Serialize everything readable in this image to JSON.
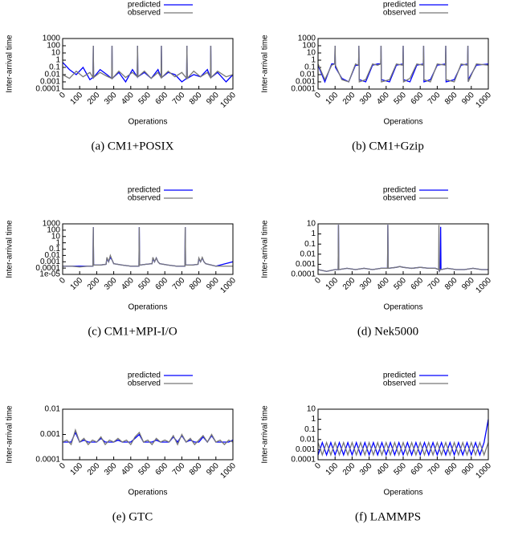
{
  "chart_data": [
    {
      "type": "line",
      "caption": "(a) CM1+POSIX",
      "xlabel": "Operations",
      "ylabel": "Inter-arrival time",
      "log_y": true,
      "legend": "top",
      "xlim": [
        0,
        1000
      ],
      "xticks": [
        0,
        100,
        200,
        300,
        400,
        500,
        600,
        700,
        800,
        900,
        1000
      ],
      "ylim": [
        0.0001,
        1000
      ],
      "yticks": [
        0.0001,
        0.001,
        0.01,
        0.1,
        1,
        10,
        100,
        1000
      ],
      "x": [
        0,
        40,
        80,
        120,
        160,
        178,
        180,
        182,
        220,
        260,
        288,
        290,
        292,
        330,
        370,
        410,
        438,
        440,
        442,
        480,
        520,
        560,
        578,
        580,
        582,
        620,
        660,
        700,
        728,
        730,
        732,
        770,
        810,
        850,
        868,
        870,
        872,
        910,
        960,
        1000
      ],
      "series": [
        {
          "name": "predicted",
          "color": "#0000ff",
          "values": [
            0.5,
            0.05,
            0.01,
            0.1,
            0.002,
            0.004,
            100,
            0.004,
            0.05,
            0.01,
            0.003,
            100,
            0.003,
            0.02,
            0.001,
            0.05,
            0.005,
            100,
            0.005,
            0.02,
            0.003,
            0.05,
            0.004,
            100,
            0.004,
            0.02,
            0.01,
            0.001,
            0.003,
            100,
            0.003,
            0.01,
            0.005,
            0.05,
            0.004,
            100,
            0.004,
            0.02,
            0.001,
            0.01
          ]
        },
        {
          "name": "observed",
          "color": "#777777",
          "values": [
            0.01,
            0.003,
            0.03,
            0.005,
            0.02,
            0.004,
            100,
            0.004,
            0.02,
            0.006,
            0.003,
            100,
            0.003,
            0.03,
            0.004,
            0.02,
            0.005,
            100,
            0.005,
            0.03,
            0.003,
            0.02,
            0.004,
            100,
            0.004,
            0.03,
            0.005,
            0.02,
            0.003,
            100,
            0.003,
            0.03,
            0.005,
            0.02,
            0.004,
            100,
            0.004,
            0.03,
            0.005,
            0.01
          ]
        }
      ]
    },
    {
      "type": "line",
      "caption": "(b) CM1+Gzip",
      "xlabel": "Operations",
      "ylabel": "Inter-arrival time",
      "log_y": true,
      "legend": "top",
      "xlim": [
        0,
        1000
      ],
      "xticks": [
        0,
        100,
        200,
        300,
        400,
        500,
        600,
        700,
        800,
        900,
        1000
      ],
      "ylim": [
        0.0001,
        1000
      ],
      "yticks": [
        0.0001,
        0.001,
        0.01,
        0.1,
        1,
        10,
        100,
        1000
      ],
      "x": [
        0,
        40,
        80,
        98,
        100,
        102,
        140,
        180,
        220,
        238,
        240,
        242,
        280,
        320,
        350,
        368,
        370,
        372,
        420,
        460,
        498,
        500,
        502,
        540,
        580,
        618,
        620,
        622,
        660,
        700,
        748,
        750,
        752,
        800,
        840,
        878,
        880,
        882,
        930,
        1000
      ],
      "series": [
        {
          "name": "predicted",
          "color": "#0000ff",
          "values": [
            0.2,
            0.001,
            0.3,
            0.3,
            100,
            0.1,
            0.003,
            0.001,
            0.2,
            0.2,
            100,
            0.002,
            0.001,
            0.2,
            0.3,
            0.3,
            100,
            0.002,
            0.001,
            0.2,
            0.3,
            100,
            0.002,
            0.001,
            0.2,
            0.3,
            100,
            0.001,
            0.002,
            0.2,
            0.3,
            100,
            0.001,
            0.002,
            0.2,
            0.3,
            100,
            0.002,
            0.2,
            0.3
          ]
        },
        {
          "name": "observed",
          "color": "#777777",
          "values": [
            0.3,
            0.002,
            0.2,
            0.3,
            100,
            0.2,
            0.002,
            0.001,
            0.3,
            0.2,
            100,
            0.001,
            0.002,
            0.3,
            0.2,
            0.3,
            100,
            0.001,
            0.002,
            0.3,
            0.2,
            100,
            0.001,
            0.003,
            0.3,
            0.2,
            100,
            0.002,
            0.001,
            0.3,
            0.2,
            100,
            0.002,
            0.001,
            0.3,
            0.2,
            100,
            0.001,
            0.3,
            0.2
          ]
        }
      ]
    },
    {
      "type": "line",
      "caption": "(c) CM1+MPI-I/O",
      "xlabel": "Operations",
      "ylabel": "Inter-arrival time",
      "log_y": true,
      "legend": "top",
      "xlim": [
        0,
        1000
      ],
      "xticks": [
        0,
        100,
        200,
        300,
        400,
        500,
        600,
        700,
        800,
        900,
        1000
      ],
      "ylim": [
        1e-05,
        1000
      ],
      "yticks": [
        {
          "value": 1e-05,
          "label": "1e-05"
        },
        0.0001,
        0.001,
        0.01,
        0.1,
        1,
        10,
        100,
        1000
      ],
      "x": [
        0,
        50,
        100,
        150,
        178,
        180,
        182,
        220,
        255,
        260,
        270,
        280,
        290,
        300,
        350,
        400,
        448,
        450,
        452,
        490,
        525,
        530,
        540,
        550,
        560,
        570,
        620,
        670,
        718,
        720,
        722,
        760,
        795,
        800,
        810,
        820,
        830,
        840,
        900,
        1000
      ],
      "series": [
        {
          "name": "predicted",
          "color": "#0000ff",
          "values": [
            0.0002,
            0.0002,
            0.0002,
            0.0002,
            0.0002,
            300,
            0.0003,
            0.0003,
            0.0004,
            0.003,
            0.001,
            0.005,
            0.002,
            0.0005,
            0.0003,
            0.0002,
            0.0002,
            300,
            0.0003,
            0.0004,
            0.0005,
            0.003,
            0.001,
            0.004,
            0.001,
            0.0005,
            0.0003,
            0.0002,
            0.0002,
            300,
            0.0003,
            0.0003,
            0.0004,
            0.003,
            0.001,
            0.004,
            0.001,
            0.0005,
            0.0002,
            0.001
          ]
        },
        {
          "name": "observed",
          "color": "#777777",
          "values": [
            0.0002,
            0.0002,
            0.00015,
            0.0002,
            0.0002,
            300,
            0.0003,
            0.0003,
            0.0004,
            0.005,
            0.001,
            0.01,
            0.002,
            0.0005,
            0.0003,
            0.0002,
            0.0002,
            300,
            0.0003,
            0.0004,
            0.0005,
            0.005,
            0.001,
            0.004,
            0.001,
            0.0005,
            0.0003,
            0.0002,
            0.0002,
            300,
            0.0003,
            0.0003,
            0.0004,
            0.004,
            0.001,
            0.005,
            0.001,
            0.0005,
            0.0002,
            0.0002
          ]
        }
      ]
    },
    {
      "type": "line",
      "caption": "(d) Nek5000",
      "xlabel": "Operations",
      "ylabel": "Inter-arrival time",
      "log_y": true,
      "legend": "top",
      "xlim": [
        0,
        1000
      ],
      "xticks": [
        0,
        100,
        200,
        300,
        400,
        500,
        600,
        700,
        800,
        900,
        1000
      ],
      "ylim": [
        0.0001,
        10
      ],
      "yticks": [
        0.0001,
        0.001,
        0.01,
        0.1,
        1,
        10
      ],
      "x": [
        0,
        50,
        100,
        118,
        120,
        122,
        170,
        220,
        270,
        320,
        370,
        408,
        410,
        412,
        460,
        480,
        500,
        550,
        600,
        650,
        690,
        708,
        710,
        712,
        718,
        720,
        722,
        760,
        810,
        860,
        910,
        960,
        1000
      ],
      "series": [
        {
          "name": "predicted",
          "color": "#0000ff",
          "values": [
            0.0003,
            0.0002,
            0.0003,
            0.0003,
            8,
            0.0003,
            0.0004,
            0.0003,
            0.0004,
            0.0003,
            0.0004,
            0.0004,
            8,
            0.0004,
            0.0005,
            0.0006,
            0.0005,
            0.0004,
            0.0005,
            0.0004,
            0.0004,
            0.0003,
            0.0003,
            0.0002,
            0.0003,
            5,
            0.0003,
            0.0004,
            0.0003,
            0.0003,
            0.0004,
            0.0003,
            0.0003
          ]
        },
        {
          "name": "observed",
          "color": "#777777",
          "values": [
            0.0003,
            0.0002,
            0.0003,
            0.0003,
            8,
            0.0003,
            0.0004,
            0.0003,
            0.0004,
            0.0003,
            0.0004,
            0.0004,
            8,
            0.0004,
            0.0005,
            0.0006,
            0.0005,
            0.0004,
            0.0005,
            0.0004,
            0.0004,
            0.0003,
            8,
            0.0002,
            0.0003,
            0.0003,
            0.0003,
            0.0004,
            0.0003,
            0.0003,
            0.0004,
            0.0003,
            0.0003
          ]
        }
      ]
    },
    {
      "type": "line",
      "caption": "(e) GTC",
      "xlabel": "Operations",
      "ylabel": "Inter-arrival time",
      "log_y": true,
      "legend": "top",
      "xlim": [
        0,
        1000
      ],
      "xticks": [
        0,
        100,
        200,
        300,
        400,
        500,
        600,
        700,
        800,
        900,
        1000
      ],
      "ylim": [
        0.0001,
        0.01
      ],
      "yticks": [
        0.0001,
        0.001,
        0.01
      ],
      "x": [
        0,
        25,
        50,
        75,
        100,
        125,
        150,
        175,
        200,
        225,
        250,
        275,
        300,
        325,
        350,
        375,
        400,
        425,
        450,
        475,
        500,
        525,
        550,
        575,
        600,
        625,
        650,
        675,
        700,
        725,
        750,
        775,
        800,
        825,
        850,
        875,
        900,
        925,
        950,
        975,
        1000
      ],
      "series": [
        {
          "name": "predicted",
          "color": "#0000ff",
          "values": [
            0.0005,
            0.0005,
            0.0005,
            0.0012,
            0.0005,
            0.0006,
            0.0005,
            0.0005,
            0.0005,
            0.0007,
            0.0005,
            0.0005,
            0.0005,
            0.0006,
            0.0005,
            0.0005,
            0.0005,
            0.0007,
            0.001,
            0.0005,
            0.0005,
            0.0005,
            0.0006,
            0.0005,
            0.0005,
            0.0005,
            0.0008,
            0.0005,
            0.0009,
            0.0005,
            0.0006,
            0.0005,
            0.0005,
            0.0008,
            0.0005,
            0.0009,
            0.0005,
            0.0005,
            0.0005,
            0.0005,
            0.0006
          ]
        },
        {
          "name": "observed",
          "color": "#777777",
          "values": [
            0.0005,
            0.0006,
            0.0004,
            0.0015,
            0.0005,
            0.0007,
            0.0004,
            0.0006,
            0.0005,
            0.0008,
            0.0004,
            0.0006,
            0.0005,
            0.0007,
            0.0005,
            0.0006,
            0.0004,
            0.0008,
            0.0012,
            0.0005,
            0.0006,
            0.0004,
            0.0007,
            0.0005,
            0.0006,
            0.0005,
            0.0009,
            0.0004,
            0.001,
            0.0005,
            0.0007,
            0.0004,
            0.0006,
            0.0009,
            0.0005,
            0.001,
            0.0005,
            0.0006,
            0.0004,
            0.0006,
            0.0005
          ]
        }
      ]
    },
    {
      "type": "line",
      "caption": "(f) LAMMPS",
      "xlabel": "Operations",
      "ylabel": "Inter-arrival time",
      "log_y": true,
      "legend": "top",
      "xlim": [
        0,
        1000
      ],
      "xticks": [
        0,
        100,
        200,
        300,
        400,
        500,
        600,
        700,
        800,
        900,
        1000
      ],
      "ylim": [
        0.0001,
        10
      ],
      "yticks": [
        0.0001,
        0.001,
        0.01,
        0.1,
        1,
        10
      ],
      "x": [
        0,
        25,
        50,
        75,
        100,
        125,
        150,
        175,
        200,
        225,
        250,
        275,
        300,
        325,
        350,
        375,
        400,
        425,
        450,
        475,
        500,
        525,
        550,
        575,
        600,
        625,
        650,
        675,
        700,
        725,
        750,
        775,
        800,
        825,
        850,
        875,
        900,
        925,
        950,
        975,
        1000
      ],
      "series": [
        {
          "name": "predicted",
          "color": "#0000ff",
          "values": [
            0.0003,
            0.005,
            0.0003,
            0.005,
            0.0003,
            0.005,
            0.0003,
            0.005,
            0.0003,
            0.005,
            0.0003,
            0.005,
            0.0003,
            0.005,
            0.0003,
            0.005,
            0.0003,
            0.005,
            0.0003,
            0.005,
            0.0003,
            0.005,
            0.0003,
            0.005,
            0.0003,
            0.005,
            0.0003,
            0.005,
            0.0003,
            0.005,
            0.0003,
            0.005,
            0.0003,
            0.005,
            0.0003,
            0.005,
            0.0003,
            0.005,
            0.0003,
            0.005,
            1
          ]
        },
        {
          "name": "observed",
          "color": "#777777",
          "values": [
            0.005,
            0.0003,
            0.005,
            0.0003,
            0.005,
            0.0003,
            0.005,
            0.0003,
            0.005,
            0.0003,
            0.005,
            0.0003,
            0.005,
            0.0003,
            0.005,
            0.0003,
            0.005,
            0.0003,
            0.005,
            0.0003,
            0.005,
            0.0003,
            0.005,
            0.0003,
            0.005,
            0.0003,
            0.005,
            0.0003,
            0.005,
            0.0003,
            0.005,
            0.0003,
            0.005,
            0.0003,
            0.005,
            0.0003,
            0.005,
            0.0003,
            0.005,
            0.0003,
            0.005
          ]
        }
      ]
    }
  ]
}
